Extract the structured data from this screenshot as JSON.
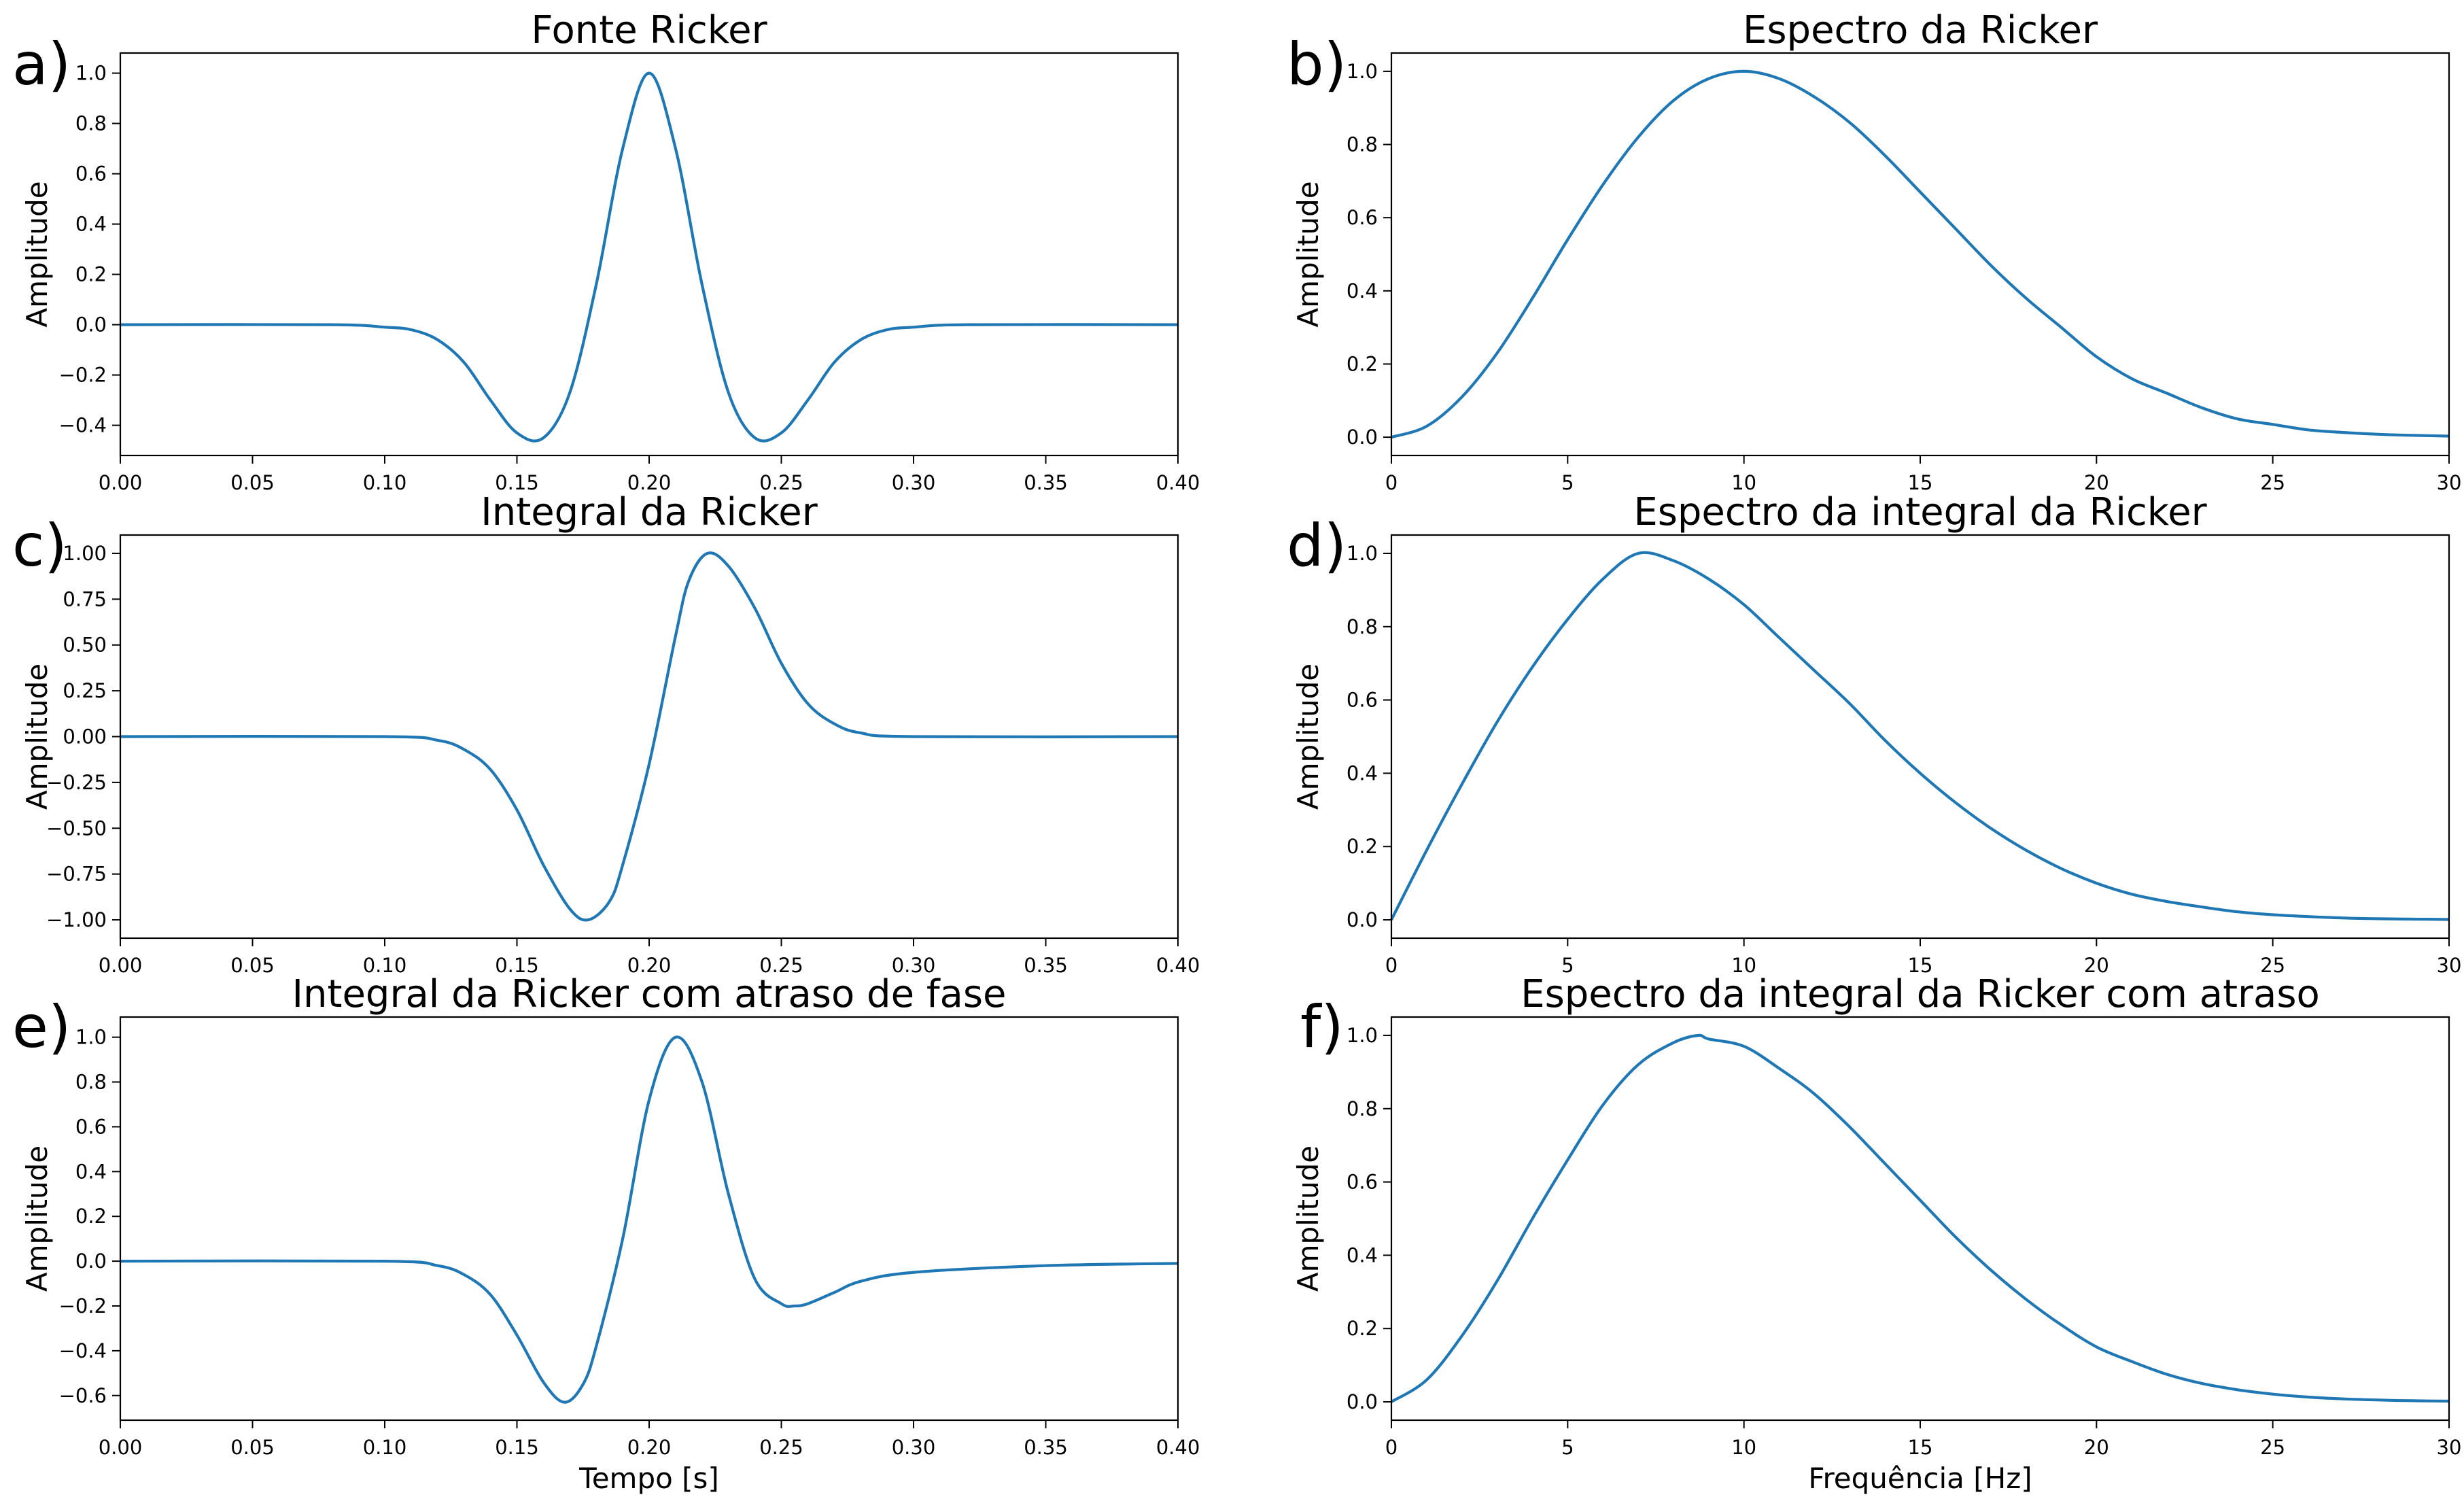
{
  "figure": {
    "line_color": "#1f77b4"
  },
  "chart_data": [
    {
      "id": "a",
      "panel_label": "a)",
      "type": "line",
      "title": "Fonte Ricker",
      "xlabel": "",
      "ylabel": "Amplitude",
      "xlim": [
        0,
        0.4
      ],
      "ylim": [
        -0.52,
        1.08
      ],
      "xticks": [
        0,
        0.05,
        0.1,
        0.15,
        0.2,
        0.25,
        0.3,
        0.35,
        0.4
      ],
      "xtick_labels": [
        "0.00",
        "0.05",
        "0.10",
        "0.15",
        "0.20",
        "0.25",
        "0.30",
        "0.35",
        "0.40"
      ],
      "yticks": [
        -0.4,
        -0.2,
        0.0,
        0.2,
        0.4,
        0.6,
        0.8,
        1.0
      ],
      "ytick_labels": [
        "−0.4",
        "−0.2",
        "0.0",
        "0.2",
        "0.4",
        "0.6",
        "0.8",
        "1.0"
      ],
      "series": [
        {
          "x": [
            0.0,
            0.08,
            0.1,
            0.11,
            0.12,
            0.13,
            0.14,
            0.15,
            0.16,
            0.17,
            0.18,
            0.19,
            0.2,
            0.21,
            0.22,
            0.23,
            0.24,
            0.25,
            0.26,
            0.27,
            0.28,
            0.29,
            0.3,
            0.32,
            0.4
          ],
          "y": [
            0.0,
            0.0,
            -0.01,
            -0.02,
            -0.06,
            -0.15,
            -0.3,
            -0.43,
            -0.45,
            -0.27,
            0.16,
            0.7,
            1.0,
            0.7,
            0.16,
            -0.27,
            -0.45,
            -0.43,
            -0.3,
            -0.15,
            -0.06,
            -0.02,
            -0.01,
            0.0,
            0.0
          ]
        }
      ]
    },
    {
      "id": "b",
      "panel_label": "b)",
      "type": "line",
      "title": "Espectro da Ricker",
      "xlabel": "",
      "ylabel": "Amplitude",
      "xlim": [
        0,
        30
      ],
      "ylim": [
        -0.05,
        1.05
      ],
      "xticks": [
        0,
        5,
        10,
        15,
        20,
        25,
        30
      ],
      "xtick_labels": [
        "0",
        "5",
        "10",
        "15",
        "20",
        "25",
        "30"
      ],
      "yticks": [
        0.0,
        0.2,
        0.4,
        0.6,
        0.8,
        1.0
      ],
      "ytick_labels": [
        "0.0",
        "0.2",
        "0.4",
        "0.6",
        "0.8",
        "1.0"
      ],
      "series": [
        {
          "x": [
            0,
            1,
            2,
            3,
            4,
            5,
            6,
            7,
            8,
            9,
            10,
            11,
            12,
            13,
            14,
            15,
            16,
            17,
            18,
            19,
            20,
            21,
            22,
            23,
            24,
            25,
            26,
            27,
            28,
            29,
            30
          ],
          "y": [
            0.0,
            0.03,
            0.11,
            0.23,
            0.38,
            0.54,
            0.69,
            0.82,
            0.92,
            0.98,
            1.0,
            0.98,
            0.93,
            0.86,
            0.77,
            0.67,
            0.57,
            0.47,
            0.38,
            0.3,
            0.22,
            0.16,
            0.12,
            0.08,
            0.05,
            0.035,
            0.02,
            0.013,
            0.008,
            0.005,
            0.003
          ]
        }
      ]
    },
    {
      "id": "c",
      "panel_label": "c)",
      "type": "line",
      "title": "Integral da Ricker",
      "xlabel": "",
      "ylabel": "Amplitude",
      "xlim": [
        0,
        0.4
      ],
      "ylim": [
        -1.1,
        1.1
      ],
      "xticks": [
        0,
        0.05,
        0.1,
        0.15,
        0.2,
        0.25,
        0.3,
        0.35,
        0.4
      ],
      "xtick_labels": [
        "0.00",
        "0.05",
        "0.10",
        "0.15",
        "0.20",
        "0.25",
        "0.30",
        "0.35",
        "0.40"
      ],
      "yticks": [
        -1.0,
        -0.75,
        -0.5,
        -0.25,
        0.0,
        0.25,
        0.5,
        0.75,
        1.0
      ],
      "ytick_labels": [
        "−1.00",
        "−0.75",
        "−0.50",
        "−0.25",
        "0.00",
        "0.25",
        "0.50",
        "0.75",
        "1.00"
      ],
      "series": [
        {
          "x": [
            0.0,
            0.1,
            0.12,
            0.13,
            0.14,
            0.15,
            0.16,
            0.17,
            0.177,
            0.185,
            0.19,
            0.2,
            0.21,
            0.215,
            0.222,
            0.23,
            0.24,
            0.25,
            0.26,
            0.27,
            0.28,
            0.3,
            0.4
          ],
          "y": [
            0.0,
            0.0,
            -0.02,
            -0.07,
            -0.18,
            -0.4,
            -0.7,
            -0.94,
            -1.0,
            -0.9,
            -0.7,
            -0.15,
            0.55,
            0.85,
            1.0,
            0.93,
            0.7,
            0.4,
            0.18,
            0.07,
            0.02,
            0.0,
            0.0
          ]
        }
      ]
    },
    {
      "id": "d",
      "panel_label": "d)",
      "type": "line",
      "title": "Espectro da integral da Ricker",
      "xlabel": "",
      "ylabel": "Amplitude",
      "xlim": [
        0,
        30
      ],
      "ylim": [
        -0.05,
        1.05
      ],
      "xticks": [
        0,
        5,
        10,
        15,
        20,
        25,
        30
      ],
      "xtick_labels": [
        "0",
        "5",
        "10",
        "15",
        "20",
        "25",
        "30"
      ],
      "yticks": [
        0.0,
        0.2,
        0.4,
        0.6,
        0.8,
        1.0
      ],
      "ytick_labels": [
        "0.0",
        "0.2",
        "0.4",
        "0.6",
        "0.8",
        "1.0"
      ],
      "series": [
        {
          "x": [
            0,
            1,
            2,
            3,
            4,
            5,
            6,
            7,
            8,
            9,
            10,
            11,
            12,
            13,
            14,
            15,
            16,
            17,
            18,
            19,
            20,
            21,
            22,
            23,
            24,
            25,
            26,
            27,
            28,
            29,
            30
          ],
          "y": [
            0.0,
            0.19,
            0.37,
            0.54,
            0.69,
            0.82,
            0.93,
            1.0,
            0.98,
            0.93,
            0.86,
            0.77,
            0.68,
            0.59,
            0.49,
            0.4,
            0.32,
            0.25,
            0.19,
            0.14,
            0.1,
            0.07,
            0.05,
            0.035,
            0.022,
            0.014,
            0.009,
            0.005,
            0.003,
            0.002,
            0.001
          ]
        }
      ]
    },
    {
      "id": "e",
      "panel_label": "e)",
      "type": "line",
      "title": "Integral da Ricker com atraso de fase",
      "xlabel": "Tempo [s]",
      "ylabel": "Amplitude",
      "xlim": [
        0,
        0.4
      ],
      "ylim": [
        -0.71,
        1.09
      ],
      "xticks": [
        0,
        0.05,
        0.1,
        0.15,
        0.2,
        0.25,
        0.3,
        0.35,
        0.4
      ],
      "xtick_labels": [
        "0.00",
        "0.05",
        "0.10",
        "0.15",
        "0.20",
        "0.25",
        "0.30",
        "0.35",
        "0.40"
      ],
      "yticks": [
        -0.6,
        -0.4,
        -0.2,
        0.0,
        0.2,
        0.4,
        0.6,
        0.8,
        1.0
      ],
      "ytick_labels": [
        "−0.6",
        "−0.4",
        "−0.2",
        "0.0",
        "0.2",
        "0.4",
        "0.6",
        "0.8",
        "1.0"
      ],
      "series": [
        {
          "x": [
            0.0,
            0.1,
            0.12,
            0.13,
            0.14,
            0.15,
            0.16,
            0.168,
            0.175,
            0.18,
            0.19,
            0.2,
            0.21,
            0.22,
            0.23,
            0.24,
            0.25,
            0.255,
            0.26,
            0.27,
            0.28,
            0.3,
            0.35,
            0.4
          ],
          "y": [
            0.0,
            0.0,
            -0.02,
            -0.06,
            -0.15,
            -0.33,
            -0.54,
            -0.63,
            -0.55,
            -0.38,
            0.1,
            0.72,
            1.0,
            0.8,
            0.3,
            -0.08,
            -0.19,
            -0.2,
            -0.19,
            -0.14,
            -0.09,
            -0.05,
            -0.02,
            -0.01
          ]
        }
      ]
    },
    {
      "id": "f",
      "panel_label": "f)",
      "type": "line",
      "title": "Espectro da integral da Ricker com atraso",
      "xlabel": "Frequência [Hz]",
      "ylabel": "Amplitude",
      "xlim": [
        0,
        30
      ],
      "ylim": [
        -0.05,
        1.05
      ],
      "xticks": [
        0,
        5,
        10,
        15,
        20,
        25,
        30
      ],
      "xtick_labels": [
        "0",
        "5",
        "10",
        "15",
        "20",
        "25",
        "30"
      ],
      "yticks": [
        0.0,
        0.2,
        0.4,
        0.6,
        0.8,
        1.0
      ],
      "ytick_labels": [
        "0.0",
        "0.2",
        "0.4",
        "0.6",
        "0.8",
        "1.0"
      ],
      "series": [
        {
          "x": [
            0,
            1,
            2,
            3,
            4,
            5,
            6,
            7,
            8,
            8.7,
            9,
            10,
            11,
            12,
            13,
            14,
            15,
            16,
            17,
            18,
            19,
            20,
            21,
            22,
            23,
            24,
            25,
            26,
            27,
            28,
            29,
            30
          ],
          "y": [
            0.0,
            0.06,
            0.18,
            0.33,
            0.5,
            0.66,
            0.81,
            0.92,
            0.98,
            1.0,
            0.99,
            0.97,
            0.91,
            0.84,
            0.75,
            0.65,
            0.55,
            0.45,
            0.36,
            0.28,
            0.21,
            0.15,
            0.11,
            0.075,
            0.05,
            0.033,
            0.021,
            0.013,
            0.008,
            0.005,
            0.003,
            0.002
          ]
        }
      ]
    }
  ]
}
